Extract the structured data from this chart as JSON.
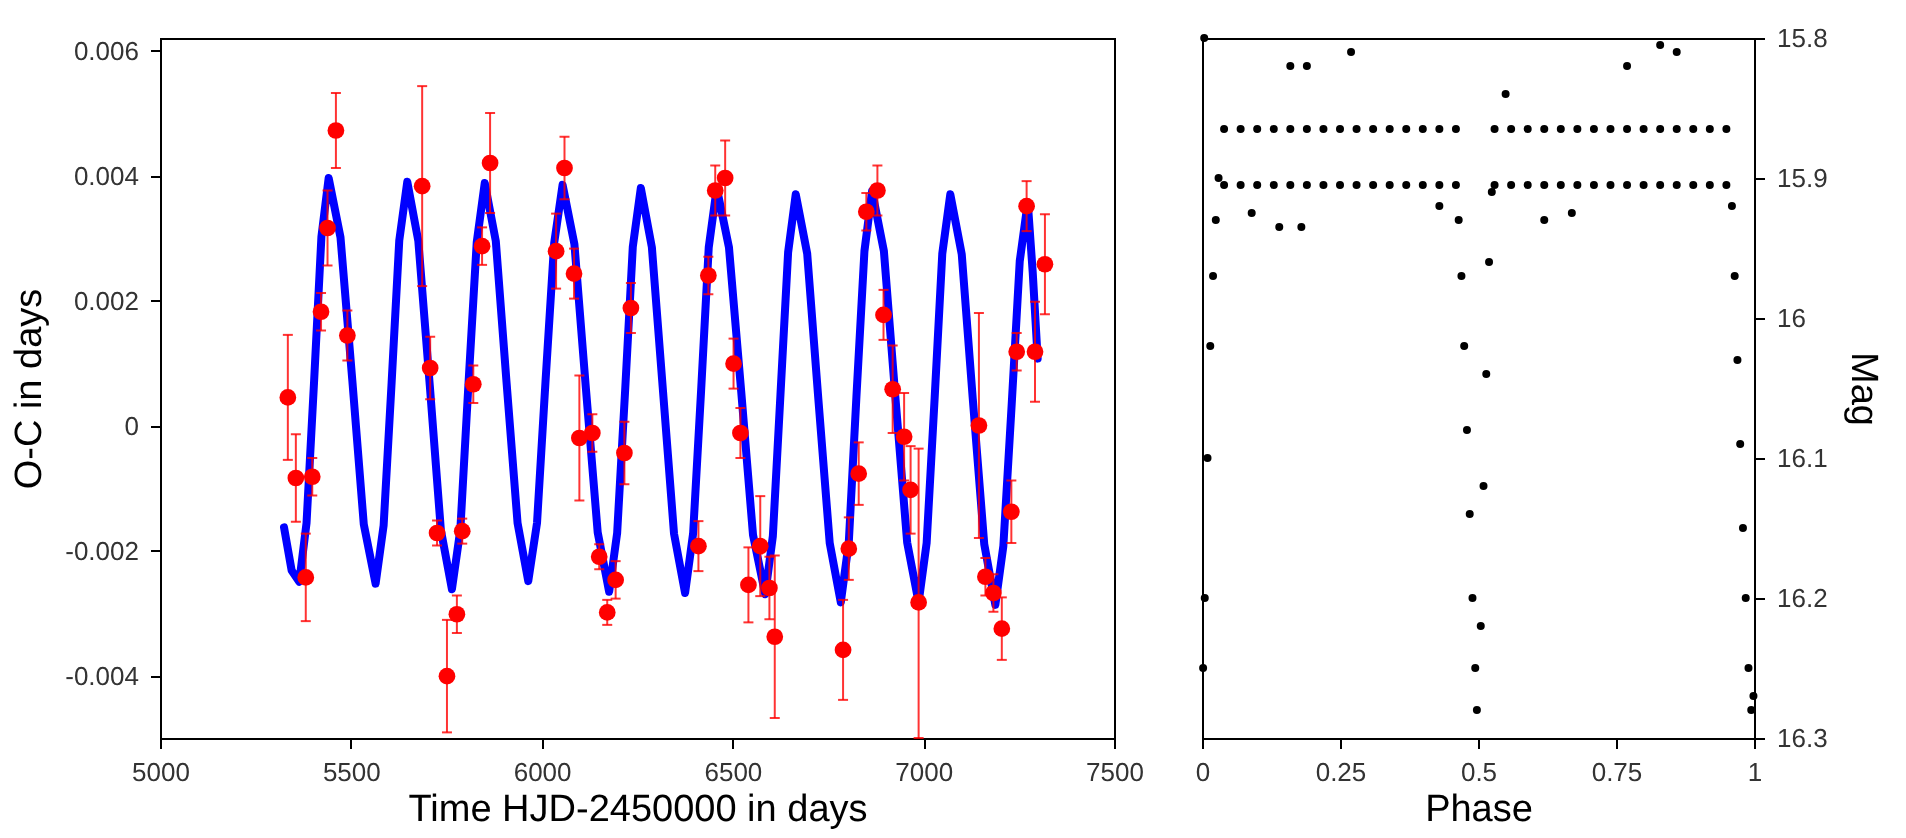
{
  "chart_data": [
    {
      "type": "scatter",
      "xlabel": "Time HJD-2450000 in days",
      "ylabel": "O-C in days",
      "xlim": [
        5000,
        7500
      ],
      "xticks": [
        5000,
        5500,
        6000,
        6500,
        7000,
        7500
      ],
      "ylim": [
        -0.005,
        0.0062
      ],
      "yticks": [
        -0.004,
        -0.002,
        0,
        0.002,
        0.004,
        0.006
      ],
      "grid": false,
      "series": [
        {
          "type": "scatter",
          "color": "#ff0000",
          "marker": "circle",
          "x": [
            5335,
            5356,
            5382,
            5399,
            5422,
            5439,
            5461,
            5491,
            5687,
            5708,
            5726,
            5752,
            5778,
            5792,
            5821,
            5844,
            5865,
            6038,
            6060,
            6085,
            6099,
            6133,
            6151,
            6172,
            6194,
            6217,
            6234,
            6411,
            6437,
            6455,
            6481,
            6503,
            6521,
            6542,
            6573,
            6597,
            6611,
            6790,
            6805,
            6831,
            6851,
            6880,
            6896,
            6920,
            6950,
            6967,
            6988,
            7146,
            7163,
            7184,
            7206,
            7231,
            7245,
            7271,
            7293,
            7319
          ],
          "values": [
            0.00045,
            -0.00084,
            -0.00243,
            -0.00082,
            0.00182,
            0.00316,
            0.00472,
            0.00144,
            0.00383,
            0.00092,
            -0.00172,
            -0.00401,
            -0.00302,
            -0.00169,
            0.00066,
            0.00287,
            0.0042,
            0.00279,
            0.00412,
            0.00243,
            -0.0002,
            -0.00012,
            -0.0021,
            -0.00299,
            -0.00247,
            -0.00044,
            0.00188,
            -0.00193,
            0.0024,
            0.00376,
            0.00396,
            0.00099,
            -0.00012,
            -0.00255,
            -0.00193,
            -0.0026,
            -0.00338,
            -0.00359,
            -0.00197,
            -0.00077,
            0.00342,
            0.00376,
            0.00177,
            0.00058,
            -0.00018,
            -0.00103,
            -0.00283,
            0,
            -0.00242,
            -0.00268,
            -0.00325,
            -0.00138,
            0.00118,
            0.00351,
            0.00118,
            0.00258
          ],
          "errors": [
            0.001,
            0.0007,
            0.0007,
            0.0003,
            0.0003,
            0.0006,
            0.0006,
            0.0004,
            0.0016,
            0.0005,
            0.0002,
            0.0009,
            0.0003,
            0.0002,
            0.0003,
            0.0003,
            0.0008,
            0.0006,
            0.0005,
            0.0004,
            0.001,
            0.0003,
            0.0002,
            0.0002,
            0.0003,
            0.0005,
            0.0004,
            0.0004,
            0.0003,
            0.0004,
            0.0006,
            0.0004,
            0.0004,
            0.0006,
            0.0008,
            0.0005,
            0.0013,
            0.0008,
            0.0005,
            0.0005,
            0.0003,
            0.0004,
            0.0004,
            0.0007,
            0.0007,
            0.0007,
            [
              -0.005,
              -0.00037
            ],
            0.0018,
            0.0003,
            0.0003,
            0.0005,
            0.0005,
            0.0003,
            0.0004,
            0.0008,
            0.0008
          ]
        },
        {
          "type": "line",
          "color": "#0000ff",
          "line_style": "solid",
          "marker": "none",
          "x": [
            5325,
            5345,
            5365,
            5384,
            5404,
            5423,
            5442,
            5473,
            5504,
            5534,
            5565,
            5586,
            5607,
            5627,
            5648,
            5677,
            5707,
            5736,
            5765,
            5787,
            5808,
            5830,
            5851,
            5880,
            5908,
            5937,
            5965,
            5988,
            6010,
            6033,
            6055,
            6086,
            6116,
            6147,
            6177,
            6198,
            6219,
            6239,
            6260,
            6289,
            6318,
            6347,
            6376,
            6397,
            6418,
            6438,
            6459,
            6491,
            6523,
            6554,
            6586,
            6606,
            6626,
            6646,
            6666,
            6696,
            6725,
            6755,
            6784,
            6805,
            6825,
            6846,
            6866,
            6897,
            6927,
            6958,
            6988,
            7009,
            7030,
            7050,
            7071,
            7101,
            7130,
            7160,
            7189,
            7210,
            7232,
            7253,
            7274,
            7287,
            7300
          ],
          "values": [
            -0.00163,
            -0.00232,
            -0.0025,
            -0.00156,
            0.00073,
            0.00302,
            0.00396,
            0.00301,
            0.00072,
            -0.00158,
            -0.00253,
            -0.0016,
            0.00069,
            0.00296,
            0.0039,
            0.00295,
            0.00064,
            -0.00167,
            -0.00262,
            -0.00167,
            0.00063,
            0.00293,
            0.00388,
            0.00295,
            0.0007,
            -0.00156,
            -0.00249,
            -0.00156,
            0.00068,
            0.00292,
            0.00385,
            0.0029,
            0.0006,
            -0.00171,
            -0.00266,
            -0.00172,
            0.00057,
            0.00286,
            0.0038,
            0.00285,
            0.00056,
            -0.00173,
            -0.00268,
            -0.00173,
            0.00056,
            0.00285,
            0.0038,
            0.00285,
            0.00055,
            -0.00175,
            -0.0027,
            -0.00177,
            0.0005,
            0.00277,
            0.0037,
            0.00275,
            0.00044,
            -0.00188,
            -0.00283,
            -0.00187,
            0.00046,
            0.00279,
            0.00375,
            0.00279,
            0.00046,
            -0.00187,
            -0.00283,
            -0.00188,
            0.00044,
            0.00275,
            0.0037,
            0.00274,
            0.00042,
            -0.0019,
            -0.00287,
            -0.00193,
            0.00035,
            0.00263,
            0.00357,
            0.00245,
            0.00107
          ]
        }
      ]
    },
    {
      "type": "scatter",
      "xlabel": "Phase",
      "ylabel": "Mag",
      "xlim": [
        0,
        1
      ],
      "xticks": [
        0,
        0.25,
        0.5,
        0.75,
        1
      ],
      "ylim": [
        16.3,
        15.8
      ],
      "yticks": [
        15.8,
        15.9,
        16,
        16.1,
        16.2,
        16.3
      ],
      "grid": false,
      "marker": "circle",
      "series": [
        {
          "type": "scatter",
          "color": "#000000",
          "x": [
            0.002,
            0.005,
            0.01,
            0.015,
            0.02,
            0.025,
            0.03,
            0.004,
            0.04,
            0.04,
            0.07,
            0.07,
            0.1,
            0.1,
            0.13,
            0.13,
            0.16,
            0.16,
            0.19,
            0.19,
            0.22,
            0.22,
            0.25,
            0.25,
            0.28,
            0.28,
            0.31,
            0.31,
            0.34,
            0.34,
            0.37,
            0.37,
            0.4,
            0.4,
            0.43,
            0.43,
            0.46,
            0.46,
            0.27,
            0.19,
            0.16,
            0.14,
            0.18,
            0.09,
            0.43,
            0.465,
            0.47,
            0.475,
            0.48,
            0.485,
            0.49,
            0.495,
            0.498,
            0.505,
            0.51,
            0.515,
            0.52,
            0.525,
            0.53,
            0.53,
            0.56,
            0.56,
            0.59,
            0.59,
            0.62,
            0.62,
            0.65,
            0.65,
            0.68,
            0.68,
            0.71,
            0.71,
            0.74,
            0.74,
            0.77,
            0.77,
            0.8,
            0.8,
            0.83,
            0.83,
            0.86,
            0.86,
            0.89,
            0.89,
            0.92,
            0.92,
            0.95,
            0.95,
            0.83,
            0.86,
            0.77,
            0.55,
            0.62,
            0.67,
            0.96,
            0.965,
            0.97,
            0.975,
            0.98,
            0.985,
            0.99,
            0.995,
            0.999
          ],
          "values": [
            16.25,
            16.2,
            16.1,
            16.02,
            15.97,
            15.93,
            15.9,
            15.8,
            15.865,
            15.905,
            15.865,
            15.905,
            15.865,
            15.905,
            15.865,
            15.905,
            15.865,
            15.905,
            15.865,
            15.905,
            15.865,
            15.905,
            15.865,
            15.905,
            15.865,
            15.905,
            15.865,
            15.905,
            15.865,
            15.905,
            15.865,
            15.905,
            15.865,
            15.905,
            15.865,
            15.905,
            15.865,
            15.905,
            15.81,
            15.82,
            15.82,
            15.935,
            15.935,
            15.925,
            15.92,
            15.93,
            15.97,
            16.02,
            16.08,
            16.14,
            16.2,
            16.25,
            16.28,
            16.22,
            16.12,
            16.04,
            15.96,
            15.91,
            15.865,
            15.905,
            15.865,
            15.905,
            15.865,
            15.905,
            15.865,
            15.905,
            15.865,
            15.905,
            15.865,
            15.905,
            15.865,
            15.905,
            15.865,
            15.905,
            15.865,
            15.905,
            15.865,
            15.905,
            15.865,
            15.905,
            15.865,
            15.905,
            15.865,
            15.905,
            15.865,
            15.905,
            15.865,
            15.905,
            15.805,
            15.81,
            15.82,
            15.84,
            15.93,
            15.925,
            15.92,
            15.97,
            16.03,
            16.09,
            16.15,
            16.2,
            16.25,
            16.28,
            16.27
          ]
        }
      ]
    }
  ]
}
